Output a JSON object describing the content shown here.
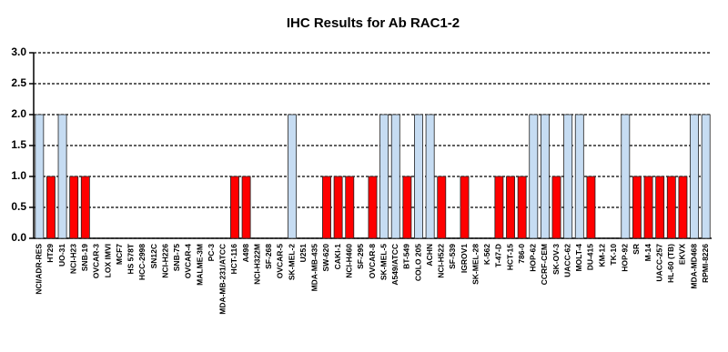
{
  "chart_data": {
    "type": "bar",
    "title": "IHC Results for Ab RAC1-2",
    "categories": [
      "NCI/ADR-RES",
      "HT29",
      "UO-31",
      "NCI-H23",
      "SNB-19",
      "OVCAR-3",
      "LOX IMVI",
      "MCF7",
      "HS 578T",
      "HCC-2998",
      "SN12C",
      "NCI-H226",
      "SNB-75",
      "OVCAR-4",
      "MALME-3M",
      "PC-3",
      "MDA-MB-231/ATCC",
      "HCT-116",
      "A498",
      "NCI-H322M",
      "SF-268",
      "OVCAR-5",
      "SK-MEL-2",
      "U251",
      "MDA-MB-435",
      "SW-620",
      "CAKI-1",
      "NCI-H460",
      "SF-295",
      "OVCAR-8",
      "SK-MEL-5",
      "A549/ATCC",
      "BT-549",
      "COLO 205",
      "ACHN",
      "NCI-H522",
      "SF-539",
      "IGROV1",
      "SK-MEL-28",
      "K-562",
      "T-47-D",
      "HCT-15",
      "786-0",
      "HOP-62",
      "CCRF-CEM",
      "SK-OV-3",
      "UACC-62",
      "MOLT-4",
      "DU-415",
      "KM-12",
      "TK-10",
      "HOP-92",
      "SR",
      "M-14",
      "UACC-257",
      "HL-60 (TB)",
      "EKVX",
      "MDA-MD468",
      "RPMI-8226"
    ],
    "values": [
      2,
      1,
      2,
      1,
      1,
      0,
      0,
      0,
      0,
      0,
      0,
      0,
      0,
      0,
      0,
      0,
      0,
      1,
      1,
      0,
      0,
      0,
      2,
      0,
      0,
      1,
      1,
      1,
      0,
      1,
      2,
      2,
      1,
      2,
      2,
      1,
      0,
      1,
      0,
      0,
      1,
      1,
      1,
      2,
      2,
      1,
      2,
      2,
      1,
      0,
      0,
      2,
      1,
      1,
      1,
      1,
      1,
      2,
      2
    ],
    "colors": [
      "#c6dcf2",
      "#ff0000",
      "#c6dcf2",
      "#ff0000",
      "#ff0000",
      "#ff0000",
      "#ff0000",
      "#ff0000",
      "#ff0000",
      "#ff0000",
      "#ff0000",
      "#ff0000",
      "#ff0000",
      "#ff0000",
      "#ff0000",
      "#ff0000",
      "#ff0000",
      "#ff0000",
      "#ff0000",
      "#ff0000",
      "#ff0000",
      "#ff0000",
      "#c6dcf2",
      "#ff0000",
      "#ff0000",
      "#ff0000",
      "#ff0000",
      "#ff0000",
      "#ff0000",
      "#ff0000",
      "#c6dcf2",
      "#c6dcf2",
      "#ff0000",
      "#c6dcf2",
      "#c6dcf2",
      "#ff0000",
      "#ff0000",
      "#ff0000",
      "#ff0000",
      "#ff0000",
      "#ff0000",
      "#ff0000",
      "#ff0000",
      "#c6dcf2",
      "#c6dcf2",
      "#ff0000",
      "#c6dcf2",
      "#c6dcf2",
      "#ff0000",
      "#ff0000",
      "#ff0000",
      "#c6dcf2",
      "#ff0000",
      "#ff0000",
      "#ff0000",
      "#ff0000",
      "#ff0000",
      "#c6dcf2",
      "#c6dcf2"
    ],
    "ylim": [
      0,
      3
    ],
    "yticks": [
      {
        "value": 0,
        "label": "0.0"
      },
      {
        "value": 0.5,
        "label": "0.5"
      },
      {
        "value": 1,
        "label": "1.0"
      },
      {
        "value": 1.5,
        "label": "1.5"
      },
      {
        "value": 2,
        "label": "2.0"
      },
      {
        "value": 2.5,
        "label": "2.5"
      },
      {
        "value": 3,
        "label": "3.0"
      }
    ],
    "grid": true
  }
}
